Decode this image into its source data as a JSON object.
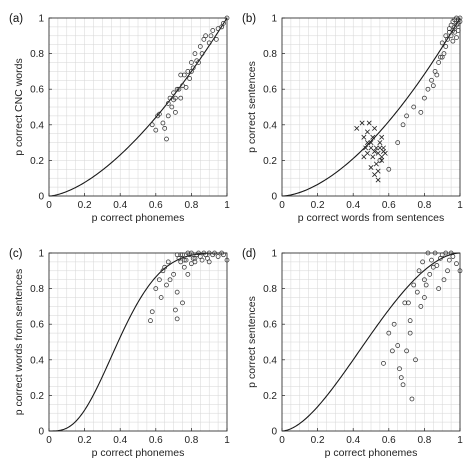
{
  "chart_data": [
    {
      "panel": "(a)",
      "type": "scatter",
      "xlabel": "p correct phonemes",
      "ylabel": "p correct CNC words",
      "xlim": [
        0,
        1
      ],
      "ylim": [
        0,
        1
      ],
      "xticks": [
        "0",
        "0.2",
        "0.4",
        "0.6",
        "0.8",
        "1"
      ],
      "yticks": [
        "0",
        "0.2",
        "0.4",
        "0.6",
        "0.8",
        "1"
      ],
      "grid": true,
      "curve_exponent": 1.6,
      "series": [
        {
          "marker": "circle",
          "x": [
            0.58,
            0.6,
            0.61,
            0.62,
            0.64,
            0.65,
            0.66,
            0.67,
            0.67,
            0.68,
            0.69,
            0.7,
            0.7,
            0.71,
            0.71,
            0.72,
            0.73,
            0.74,
            0.74,
            0.75,
            0.76,
            0.77,
            0.78,
            0.79,
            0.8,
            0.8,
            0.81,
            0.82,
            0.83,
            0.84,
            0.85,
            0.86,
            0.87,
            0.88,
            0.9,
            0.91,
            0.92,
            0.94,
            0.95,
            0.97,
            0.98,
            1.0
          ],
          "y": [
            0.4,
            0.37,
            0.45,
            0.46,
            0.41,
            0.38,
            0.32,
            0.45,
            0.52,
            0.55,
            0.5,
            0.54,
            0.58,
            0.47,
            0.55,
            0.6,
            0.6,
            0.55,
            0.68,
            0.62,
            0.68,
            0.61,
            0.7,
            0.66,
            0.7,
            0.75,
            0.72,
            0.8,
            0.76,
            0.75,
            0.84,
            0.8,
            0.88,
            0.9,
            0.86,
            0.9,
            0.93,
            0.88,
            0.94,
            0.95,
            0.97,
            1.0
          ]
        }
      ]
    },
    {
      "panel": "(b)",
      "type": "scatter",
      "xlabel": "p correct words from sentences",
      "ylabel": "p correct sentences",
      "xlim": [
        0,
        1
      ],
      "ylim": [
        0,
        1
      ],
      "xticks": [
        "0",
        "0.2",
        "0.4",
        "0.6",
        "0.8",
        "1"
      ],
      "yticks": [
        "0",
        "0.2",
        "0.4",
        "0.6",
        "0.8",
        "1"
      ],
      "grid": true,
      "curve_exponent": 1.7,
      "series": [
        {
          "marker": "circle",
          "x": [
            0.55,
            0.6,
            0.65,
            0.68,
            0.7,
            0.74,
            0.78,
            0.8,
            0.82,
            0.84,
            0.85,
            0.86,
            0.87,
            0.88,
            0.89,
            0.9,
            0.9,
            0.91,
            0.92,
            0.92,
            0.93,
            0.94,
            0.94,
            0.95,
            0.95,
            0.96,
            0.96,
            0.97,
            0.97,
            0.98,
            0.98,
            0.99,
            0.99,
            1.0,
            1.0,
            0.97,
            0.98,
            0.99,
            0.96
          ],
          "y": [
            0.2,
            0.15,
            0.3,
            0.4,
            0.45,
            0.5,
            0.47,
            0.55,
            0.6,
            0.65,
            0.62,
            0.7,
            0.68,
            0.75,
            0.78,
            0.78,
            0.86,
            0.8,
            0.9,
            0.84,
            0.88,
            0.92,
            0.94,
            0.9,
            0.96,
            0.93,
            0.98,
            0.95,
            0.99,
            0.96,
            1.0,
            0.97,
            0.99,
            0.98,
            1.0,
            0.92,
            0.89,
            0.93,
            0.87
          ]
        },
        {
          "marker": "cross",
          "x": [
            0.42,
            0.45,
            0.46,
            0.47,
            0.48,
            0.48,
            0.49,
            0.5,
            0.5,
            0.51,
            0.51,
            0.52,
            0.52,
            0.53,
            0.53,
            0.54,
            0.54,
            0.55,
            0.55,
            0.56,
            0.56,
            0.57,
            0.57,
            0.58,
            0.5,
            0.52,
            0.54,
            0.56,
            0.48,
            0.46
          ],
          "y": [
            0.38,
            0.41,
            0.33,
            0.27,
            0.24,
            0.36,
            0.41,
            0.27,
            0.3,
            0.22,
            0.33,
            0.25,
            0.38,
            0.27,
            0.18,
            0.24,
            0.14,
            0.3,
            0.27,
            0.22,
            0.33,
            0.25,
            0.27,
            0.24,
            0.16,
            0.12,
            0.09,
            0.2,
            0.3,
            0.22
          ]
        }
      ]
    },
    {
      "panel": "(c)",
      "type": "scatter",
      "xlabel": "p correct phonemes",
      "ylabel": "p correct words from sentences",
      "xlim": [
        0,
        1
      ],
      "ylim": [
        0,
        1
      ],
      "xticks": [
        "0",
        "0.2",
        "0.4",
        "0.6",
        "0.8",
        "1"
      ],
      "yticks": [
        "0",
        "0.2",
        "0.4",
        "0.6",
        "0.8",
        "1"
      ],
      "grid": true,
      "curve_k": 3.5,
      "series": [
        {
          "marker": "circle",
          "x": [
            0.57,
            0.58,
            0.6,
            0.62,
            0.63,
            0.64,
            0.65,
            0.66,
            0.67,
            0.68,
            0.7,
            0.71,
            0.72,
            0.72,
            0.73,
            0.74,
            0.75,
            0.75,
            0.76,
            0.77,
            0.78,
            0.79,
            0.8,
            0.8,
            0.81,
            0.82,
            0.83,
            0.84,
            0.85,
            0.86,
            0.87,
            0.88,
            0.89,
            0.9,
            0.92,
            0.93,
            0.95,
            0.97,
            0.98,
            1.0,
            0.74,
            0.76,
            0.72,
            0.78,
            0.82,
            0.9
          ],
          "y": [
            0.62,
            0.67,
            0.8,
            0.85,
            0.75,
            0.9,
            0.92,
            0.82,
            0.95,
            0.85,
            0.88,
            0.68,
            0.63,
            0.78,
            0.97,
            0.95,
            0.99,
            0.72,
            0.92,
            0.96,
            0.88,
            0.99,
            0.94,
            1.0,
            0.97,
            0.95,
            0.99,
            1.0,
            0.98,
            0.96,
            1.0,
            0.99,
            0.97,
            1.0,
            0.99,
            1.0,
            0.98,
            1.0,
            0.99,
            0.96,
            0.99,
            0.96,
            0.99,
            1.0,
            0.97,
            0.95
          ]
        }
      ]
    },
    {
      "panel": "(d)",
      "type": "scatter",
      "xlabel": "p correct phonemes",
      "ylabel": "p correct sentences",
      "xlim": [
        0,
        1
      ],
      "ylim": [
        0,
        1
      ],
      "xticks": [
        "0",
        "0.2",
        "0.4",
        "0.6",
        "0.8",
        "1"
      ],
      "yticks": [
        "0",
        "0.2",
        "0.4",
        "0.6",
        "0.8",
        "1"
      ],
      "grid": true,
      "curve_k": 1.8,
      "series": [
        {
          "marker": "circle",
          "x": [
            0.57,
            0.6,
            0.62,
            0.63,
            0.65,
            0.67,
            0.68,
            0.7,
            0.71,
            0.72,
            0.73,
            0.74,
            0.75,
            0.76,
            0.77,
            0.78,
            0.79,
            0.8,
            0.81,
            0.82,
            0.83,
            0.84,
            0.85,
            0.86,
            0.87,
            0.88,
            0.89,
            0.9,
            0.91,
            0.92,
            0.93,
            0.94,
            0.95,
            0.96,
            0.98,
            1.0,
            0.69,
            0.66,
            0.72,
            0.8
          ],
          "y": [
            0.38,
            0.55,
            0.45,
            0.6,
            0.48,
            0.3,
            0.26,
            0.45,
            0.72,
            0.62,
            0.18,
            0.82,
            0.4,
            0.78,
            0.9,
            0.7,
            0.95,
            0.75,
            0.82,
            1.0,
            0.88,
            0.96,
            0.92,
            1.0,
            0.93,
            0.8,
            0.97,
            0.99,
            0.85,
            1.0,
            0.9,
            0.96,
            1.0,
            0.98,
            0.94,
            0.9,
            0.72,
            0.35,
            0.55,
            0.85
          ]
        }
      ]
    }
  ]
}
